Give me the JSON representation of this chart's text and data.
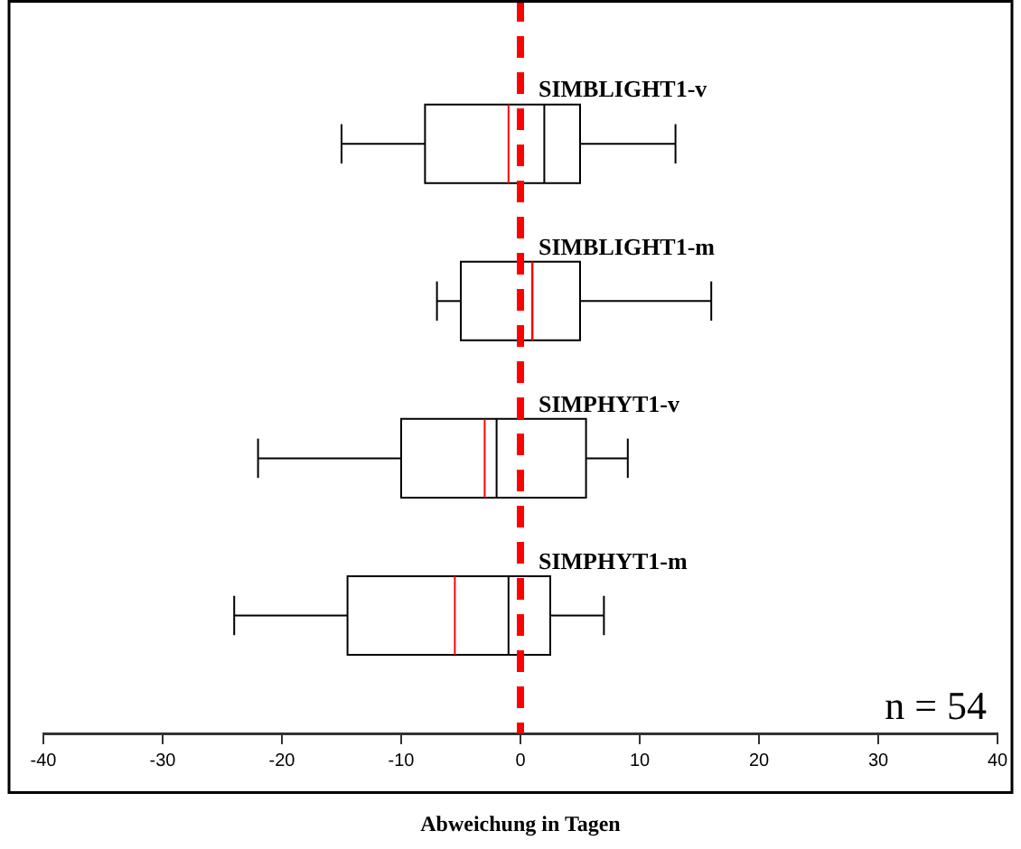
{
  "chart_data": {
    "type": "box",
    "orientation": "horizontal",
    "xlabel": "Abweichung in Tagen",
    "categories": [
      "SIMBLIGHT1-v",
      "SIMBLIGHT1-m",
      "SIMPHYT1-v",
      "SIMPHYT1-m"
    ],
    "color": "#000000",
    "boxes": [
      {
        "low": -15,
        "q1": -8,
        "median": 2,
        "q3": 5,
        "high": 13,
        "mean": -1
      },
      {
        "low": -7,
        "q1": -5,
        "median": 1,
        "q3": 5,
        "high": 16,
        "mean": 1
      },
      {
        "low": -22,
        "q1": -10,
        "median": -2,
        "q3": 5.5,
        "high": 9,
        "mean": -3
      },
      {
        "low": -24,
        "q1": -14.5,
        "median": -1,
        "q3": 2.5,
        "high": 7,
        "mean": -5.5
      }
    ],
    "xlim": [
      -40,
      40
    ],
    "xticks": [
      -40,
      -30,
      -20,
      -10,
      0,
      10,
      20,
      30,
      40
    ],
    "ref_lines": [
      {
        "axis": "x",
        "value": 0,
        "color": "#ff0000",
        "line_style": "dashed"
      }
    ],
    "annotations": [
      "n = 54"
    ],
    "grid": false,
    "legend": false
  }
}
